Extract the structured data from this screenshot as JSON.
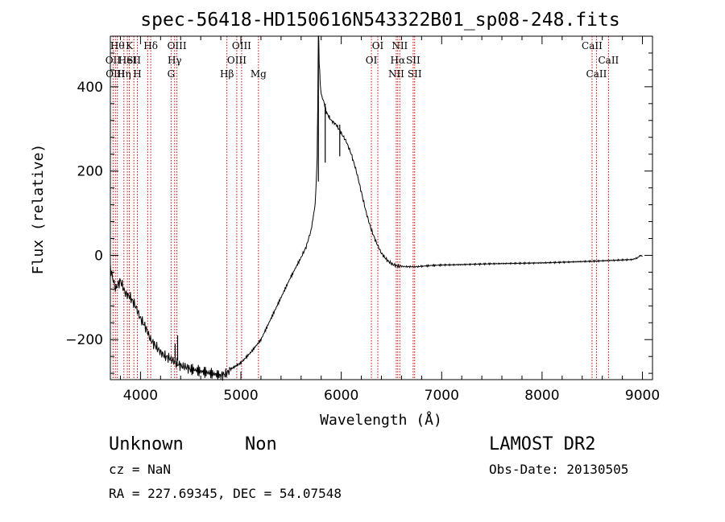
{
  "chart_data": {
    "type": "line",
    "title": "spec-56418-HD150616N543322B01_sp08-248.fits",
    "xlabel": "Wavelength (Å)",
    "ylabel": "Flux (relative)",
    "xlim": [
      3700,
      9100
    ],
    "ylim": [
      -295,
      520
    ],
    "x_ticks": [
      4000,
      5000,
      6000,
      7000,
      8000,
      9000
    ],
    "x_tick_labels": [
      "4000",
      "5000",
      "6000",
      "7000",
      "8000",
      "9000"
    ],
    "y_ticks": [
      -200,
      0,
      200,
      400
    ],
    "y_tick_labels": [
      "−200",
      "0",
      "200",
      "400"
    ],
    "grid": false,
    "series": [
      {
        "name": "",
        "color": "#000000",
        "x": [
          3700,
          3750,
          3800,
          3850,
          3900,
          3950,
          4000,
          4050,
          4100,
          4150,
          4200,
          4250,
          4300,
          4350,
          4400,
          4450,
          4500,
          4600,
          4700,
          4800,
          4850,
          4900,
          5000,
          5100,
          5200,
          5300,
          5400,
          5500,
          5600,
          5650,
          5700,
          5740,
          5760,
          5765,
          5770,
          5775,
          5780,
          5790,
          5800,
          5820,
          5850,
          5900,
          5950,
          6000,
          6050,
          6100,
          6150,
          6200,
          6250,
          6300,
          6350,
          6400,
          6450,
          6500,
          6550,
          6600,
          6650,
          6700,
          6750,
          6800,
          6900,
          7000,
          7200,
          7500,
          8000,
          8500,
          8700,
          8900,
          8950,
          8980,
          9000
        ],
        "y": [
          -30,
          -80,
          -60,
          -90,
          -100,
          -120,
          -150,
          -170,
          -200,
          -215,
          -230,
          -240,
          -245,
          -255,
          -262,
          -265,
          -270,
          -275,
          -280,
          -285,
          -282,
          -270,
          -255,
          -230,
          -200,
          -150,
          -100,
          -50,
          -5,
          20,
          60,
          120,
          230,
          350,
          480,
          520,
          460,
          410,
          380,
          370,
          340,
          320,
          310,
          290,
          270,
          240,
          200,
          150,
          100,
          60,
          30,
          5,
          -10,
          -20,
          -25,
          -26,
          -27,
          -27,
          -27,
          -26,
          -24,
          -23,
          -22,
          -20,
          -18,
          -14,
          -12,
          -10,
          -6,
          0,
          -3
        ]
      }
    ],
    "spikes": [
      {
        "x": 5772,
        "y_top": 520,
        "y_bottom": 175
      },
      {
        "x": 5840,
        "y_top": 360,
        "y_bottom": 220
      },
      {
        "x": 5985,
        "y_top": 310,
        "y_bottom": 235
      },
      {
        "x": 4370,
        "y_top": -190,
        "y_bottom": -250
      },
      {
        "x": 4345,
        "y_top": -210,
        "y_bottom": -250
      }
    ],
    "line_markers": [
      {
        "x": 3727,
        "label": "OII",
        "row": 1
      },
      {
        "x": 3750,
        "label": "OIII",
        "row": 2
      },
      {
        "x": 3770,
        "label": "Hθ",
        "row": 0
      },
      {
        "x": 3835,
        "label": "Hη",
        "row": 2
      },
      {
        "x": 3869,
        "label": "HeI",
        "row": 1
      },
      {
        "x": 3889,
        "label": "K",
        "row": 0
      },
      {
        "x": 3934,
        "label": "SII",
        "row": 1
      },
      {
        "x": 3969,
        "label": "H",
        "row": 2
      },
      {
        "x": 4072,
        "label": "",
        "row": 0
      },
      {
        "x": 4102,
        "label": "Hδ",
        "row": 0
      },
      {
        "x": 4305,
        "label": "G",
        "row": 2
      },
      {
        "x": 4340,
        "label": "Hγ",
        "row": 1
      },
      {
        "x": 4363,
        "label": "OIII",
        "row": 0
      },
      {
        "x": 4861,
        "label": "Hβ",
        "row": 2
      },
      {
        "x": 4959,
        "label": "OIII",
        "row": 1
      },
      {
        "x": 5007,
        "label": "OIII",
        "row": 0
      },
      {
        "x": 5175,
        "label": "Mg",
        "row": 2
      },
      {
        "x": 6300,
        "label": "OI",
        "row": 1
      },
      {
        "x": 6364,
        "label": "OI",
        "row": 0
      },
      {
        "x": 6548,
        "label": "NII",
        "row": 2
      },
      {
        "x": 6563,
        "label": "Hα",
        "row": 1
      },
      {
        "x": 6583,
        "label": "NII",
        "row": 0
      },
      {
        "x": 6716,
        "label": "SII",
        "row": 1
      },
      {
        "x": 6731,
        "label": "SII",
        "row": 2
      },
      {
        "x": 8498,
        "label": "CaII",
        "row": 0
      },
      {
        "x": 8542,
        "label": "CaII",
        "row": 2
      },
      {
        "x": 8662,
        "label": "CaII",
        "row": 1
      }
    ],
    "marker_color": "#cc0000"
  },
  "footer": {
    "class_label": "Unknown",
    "subclass_label": "Non",
    "cz_text": "cz = NaN",
    "radec_text": "RA = 227.69345, DEC =  54.07548",
    "survey_label": "LAMOST DR2",
    "obs_date_text": "Obs-Date: 20130505"
  }
}
